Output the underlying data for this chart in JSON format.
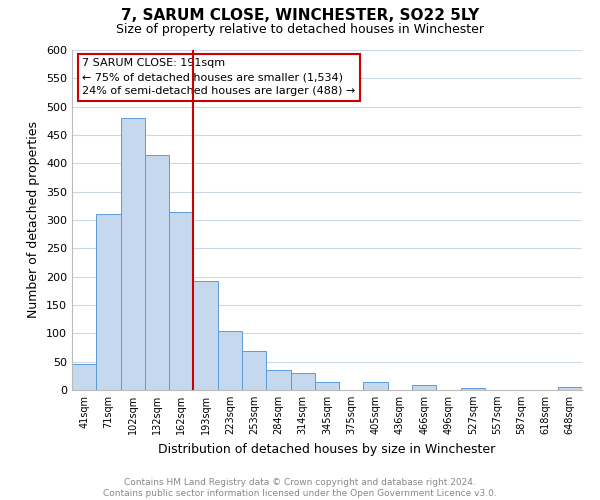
{
  "title": "7, SARUM CLOSE, WINCHESTER, SO22 5LY",
  "subtitle": "Size of property relative to detached houses in Winchester",
  "xlabel": "Distribution of detached houses by size in Winchester",
  "ylabel": "Number of detached properties",
  "bar_labels": [
    "41sqm",
    "71sqm",
    "102sqm",
    "132sqm",
    "162sqm",
    "193sqm",
    "223sqm",
    "253sqm",
    "284sqm",
    "314sqm",
    "345sqm",
    "375sqm",
    "405sqm",
    "436sqm",
    "466sqm",
    "496sqm",
    "527sqm",
    "557sqm",
    "587sqm",
    "618sqm",
    "648sqm"
  ],
  "bar_values": [
    46,
    311,
    480,
    414,
    315,
    192,
    104,
    68,
    36,
    30,
    14,
    0,
    14,
    0,
    8,
    0,
    3,
    0,
    0,
    0,
    5
  ],
  "bar_color": "#c5d8ee",
  "bar_edge_color": "#5b9bd5",
  "vline_color": "#cc0000",
  "annotation_title": "7 SARUM CLOSE: 191sqm",
  "annotation_line1": "← 75% of detached houses are smaller (1,534)",
  "annotation_line2": "24% of semi-detached houses are larger (488) →",
  "annotation_box_color": "#ffffff",
  "annotation_box_edge": "#cc0000",
  "ylim": [
    0,
    600
  ],
  "yticks": [
    0,
    50,
    100,
    150,
    200,
    250,
    300,
    350,
    400,
    450,
    500,
    550,
    600
  ],
  "footer_line1": "Contains HM Land Registry data © Crown copyright and database right 2024.",
  "footer_line2": "Contains public sector information licensed under the Open Government Licence v3.0.",
  "background_color": "#ffffff",
  "grid_color": "#ccd8e8",
  "title_fontsize": 11,
  "subtitle_fontsize": 9,
  "ylabel_fontsize": 9,
  "xlabel_fontsize": 9,
  "tick_fontsize": 8,
  "footer_fontsize": 6.5,
  "footer_color": "#888888"
}
